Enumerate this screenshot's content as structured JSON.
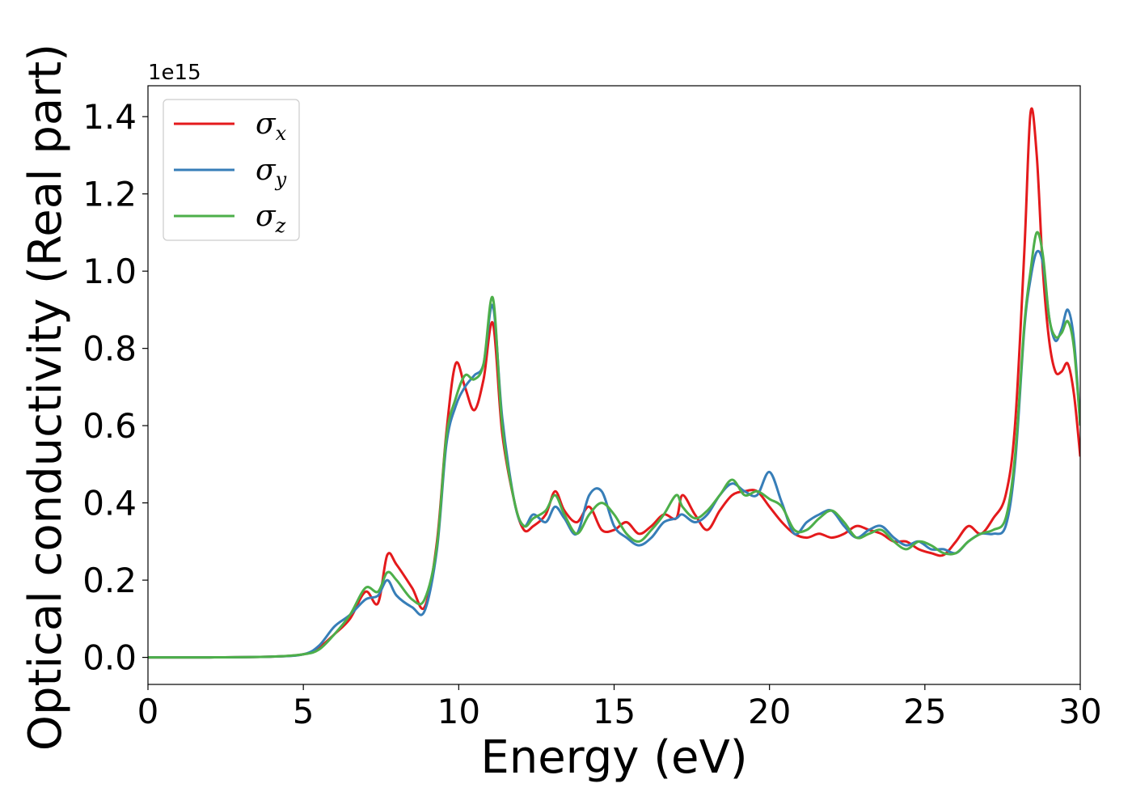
{
  "chart_data": {
    "type": "line",
    "xlabel": "Energy (eV)",
    "ylabel": "Optical conductivity (Real part)",
    "y_offset_label": "1e15",
    "xlim": [
      0,
      30
    ],
    "ylim": [
      -0.07,
      1.48
    ],
    "xticks": [
      0,
      5,
      10,
      15,
      20,
      25,
      30
    ],
    "xtick_labels": [
      "0",
      "5",
      "10",
      "15",
      "20",
      "25",
      "30"
    ],
    "yticks": [
      0.0,
      0.2,
      0.4,
      0.6,
      0.8,
      1.0,
      1.2,
      1.4
    ],
    "ytick_labels": [
      "0.0",
      "0.2",
      "0.4",
      "0.6",
      "0.8",
      "1.0",
      "1.2",
      "1.4"
    ],
    "grid": false,
    "legend_position": "top-left",
    "series": [
      {
        "name": "σ",
        "subscript": "x",
        "color": "#e41a1c",
        "x": [
          0,
          2,
          4,
          5,
          5.5,
          6,
          6.5,
          7,
          7.4,
          7.7,
          8,
          8.5,
          8.9,
          9.3,
          9.6,
          9.9,
          10.2,
          10.5,
          10.8,
          11.1,
          11.4,
          11.8,
          12.1,
          12.4,
          12.8,
          13.1,
          13.4,
          13.8,
          14.2,
          14.6,
          15,
          15.4,
          15.8,
          16.2,
          16.6,
          17,
          17.2,
          17.6,
          18,
          18.4,
          18.8,
          19.2,
          19.6,
          20,
          20.4,
          20.8,
          21.2,
          21.6,
          22,
          22.4,
          22.8,
          23.2,
          23.6,
          24,
          24.4,
          24.8,
          25.2,
          25.6,
          26,
          26.4,
          26.8,
          27.2,
          27.6,
          27.9,
          28.2,
          28.4,
          28.6,
          28.8,
          29,
          29.2,
          29.4,
          29.6,
          29.8,
          30
        ],
        "y": [
          0,
          0,
          0.002,
          0.008,
          0.025,
          0.06,
          0.1,
          0.17,
          0.14,
          0.265,
          0.24,
          0.18,
          0.13,
          0.3,
          0.58,
          0.76,
          0.7,
          0.64,
          0.72,
          0.865,
          0.58,
          0.4,
          0.33,
          0.34,
          0.37,
          0.43,
          0.38,
          0.35,
          0.39,
          0.33,
          0.33,
          0.35,
          0.32,
          0.34,
          0.37,
          0.36,
          0.42,
          0.37,
          0.33,
          0.38,
          0.42,
          0.43,
          0.43,
          0.39,
          0.35,
          0.32,
          0.31,
          0.32,
          0.31,
          0.32,
          0.34,
          0.33,
          0.32,
          0.3,
          0.3,
          0.28,
          0.27,
          0.265,
          0.3,
          0.34,
          0.32,
          0.36,
          0.42,
          0.6,
          1.05,
          1.41,
          1.3,
          1.0,
          0.82,
          0.74,
          0.74,
          0.76,
          0.68,
          0.52
        ]
      },
      {
        "name": "σ",
        "subscript": "y",
        "color": "#377eb8",
        "x": [
          0,
          2,
          4,
          5,
          5.5,
          6,
          6.5,
          7,
          7.4,
          7.7,
          8,
          8.5,
          8.9,
          9.3,
          9.6,
          9.9,
          10.2,
          10.5,
          10.8,
          11.1,
          11.4,
          11.8,
          12.1,
          12.4,
          12.8,
          13.1,
          13.4,
          13.8,
          14.2,
          14.6,
          15,
          15.4,
          15.8,
          16.2,
          16.6,
          17,
          17.2,
          17.6,
          18,
          18.4,
          18.8,
          19.2,
          19.6,
          20,
          20.4,
          20.8,
          21.2,
          21.6,
          22,
          22.4,
          22.8,
          23.2,
          23.6,
          24,
          24.4,
          24.8,
          25.2,
          25.6,
          26,
          26.4,
          26.8,
          27.2,
          27.6,
          27.9,
          28.2,
          28.4,
          28.6,
          28.8,
          29,
          29.2,
          29.4,
          29.6,
          29.8,
          30
        ],
        "y": [
          0,
          0,
          0.002,
          0.008,
          0.03,
          0.08,
          0.11,
          0.15,
          0.16,
          0.2,
          0.16,
          0.13,
          0.12,
          0.28,
          0.55,
          0.65,
          0.7,
          0.73,
          0.76,
          0.91,
          0.62,
          0.4,
          0.34,
          0.37,
          0.35,
          0.39,
          0.36,
          0.32,
          0.42,
          0.43,
          0.34,
          0.31,
          0.29,
          0.31,
          0.35,
          0.36,
          0.37,
          0.35,
          0.37,
          0.42,
          0.45,
          0.43,
          0.42,
          0.48,
          0.4,
          0.32,
          0.35,
          0.37,
          0.38,
          0.34,
          0.31,
          0.33,
          0.34,
          0.31,
          0.29,
          0.3,
          0.28,
          0.28,
          0.27,
          0.3,
          0.32,
          0.32,
          0.34,
          0.5,
          0.85,
          0.98,
          1.05,
          1.02,
          0.88,
          0.82,
          0.85,
          0.9,
          0.82,
          0.6
        ]
      },
      {
        "name": "σ",
        "subscript": "z",
        "color": "#4daf4a",
        "x": [
          0,
          2,
          4,
          5,
          5.5,
          6,
          6.5,
          7,
          7.4,
          7.7,
          8,
          8.5,
          8.9,
          9.3,
          9.6,
          9.9,
          10.2,
          10.5,
          10.8,
          11.1,
          11.4,
          11.8,
          12.1,
          12.4,
          12.8,
          13.1,
          13.4,
          13.8,
          14.2,
          14.6,
          15,
          15.4,
          15.8,
          16.2,
          16.6,
          17,
          17.2,
          17.6,
          18,
          18.4,
          18.8,
          19.2,
          19.6,
          20,
          20.4,
          20.8,
          21.2,
          21.6,
          22,
          22.4,
          22.8,
          23.2,
          23.6,
          24,
          24.4,
          24.8,
          25.2,
          25.6,
          26,
          26.4,
          26.8,
          27.2,
          27.6,
          27.9,
          28.2,
          28.4,
          28.6,
          28.8,
          29,
          29.2,
          29.4,
          29.6,
          29.8,
          30
        ],
        "y": [
          0,
          0,
          0.002,
          0.008,
          0.02,
          0.06,
          0.11,
          0.18,
          0.17,
          0.22,
          0.2,
          0.15,
          0.15,
          0.29,
          0.57,
          0.67,
          0.73,
          0.72,
          0.76,
          0.93,
          0.6,
          0.4,
          0.34,
          0.36,
          0.38,
          0.42,
          0.37,
          0.32,
          0.37,
          0.4,
          0.37,
          0.32,
          0.3,
          0.33,
          0.37,
          0.42,
          0.39,
          0.36,
          0.38,
          0.42,
          0.46,
          0.42,
          0.43,
          0.41,
          0.39,
          0.33,
          0.33,
          0.36,
          0.38,
          0.35,
          0.31,
          0.32,
          0.33,
          0.3,
          0.28,
          0.3,
          0.29,
          0.27,
          0.27,
          0.3,
          0.32,
          0.33,
          0.36,
          0.52,
          0.86,
          1.0,
          1.1,
          1.04,
          0.88,
          0.83,
          0.84,
          0.87,
          0.8,
          0.6
        ]
      }
    ]
  }
}
